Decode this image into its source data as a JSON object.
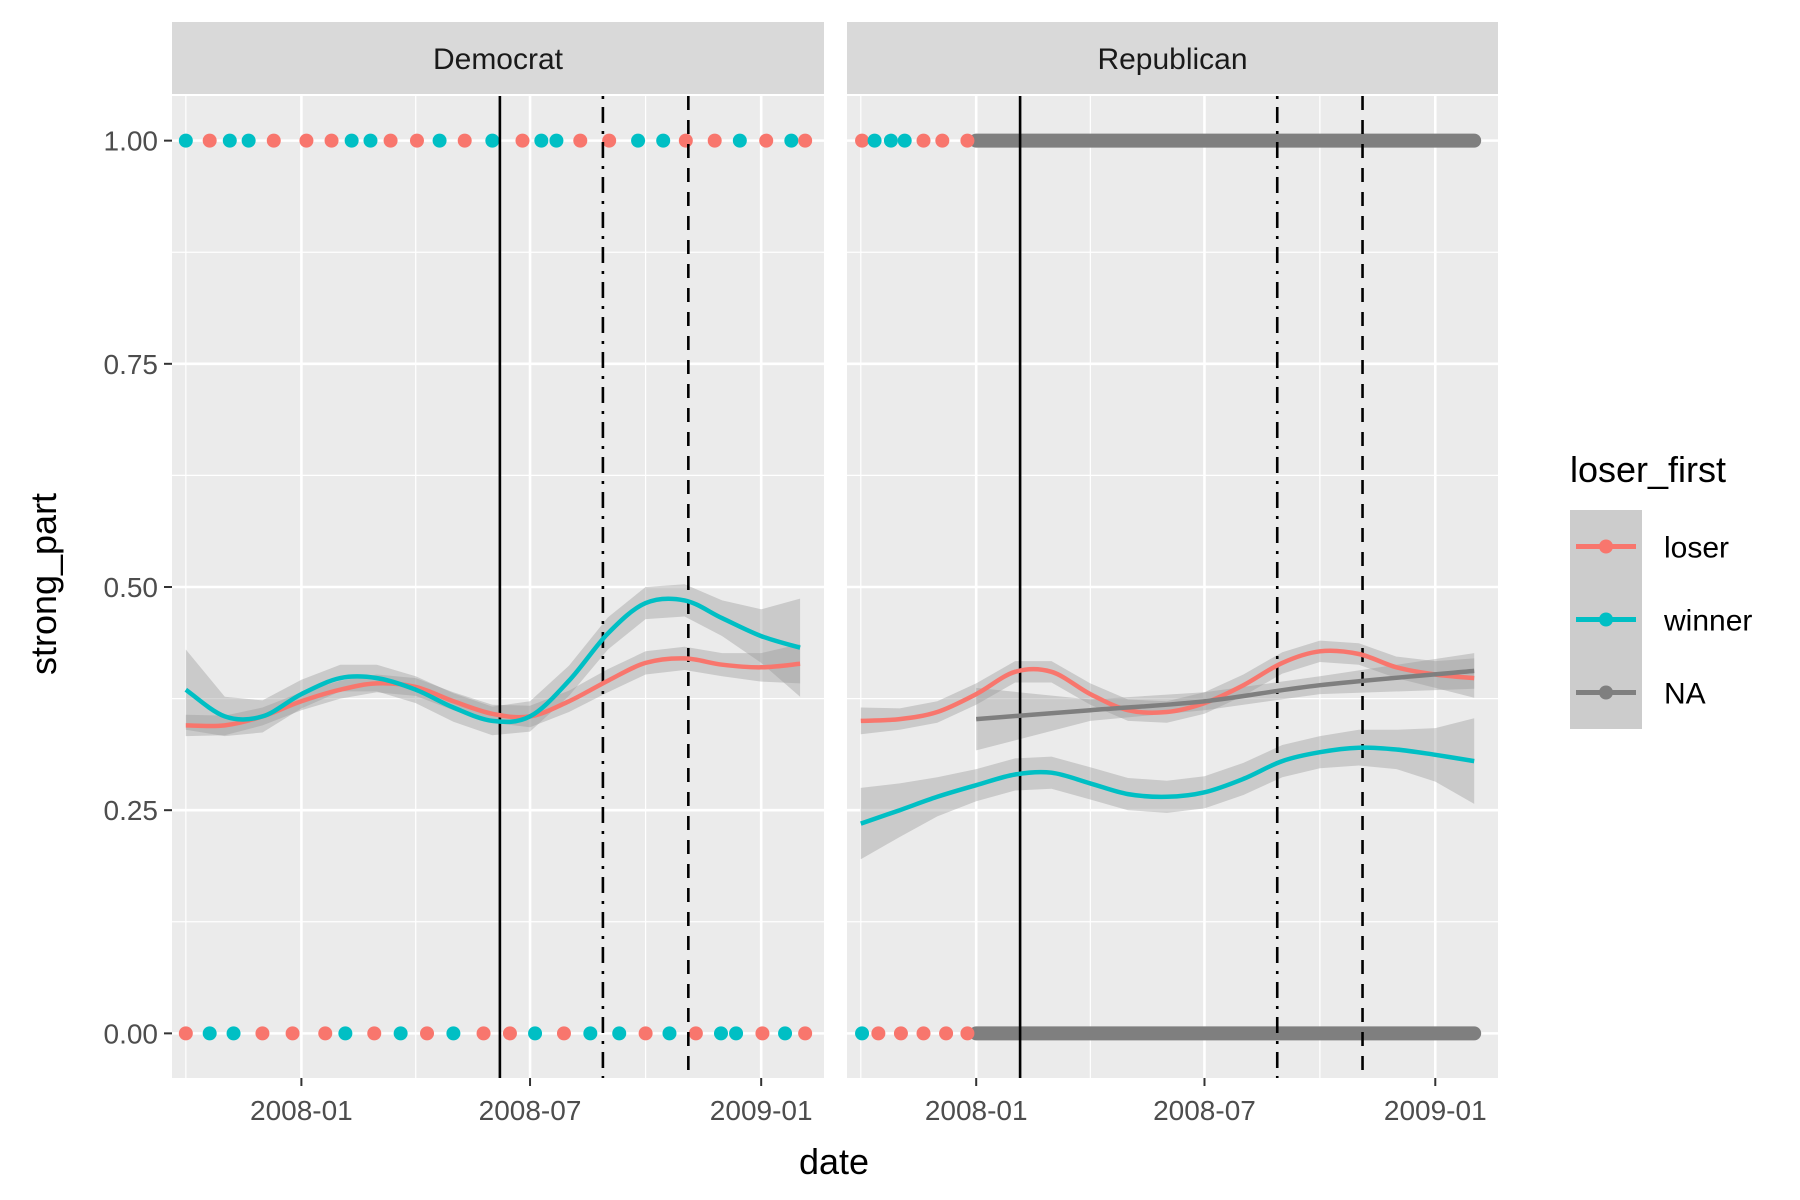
{
  "chart_data": {
    "type": "line",
    "subtype": "faceted scatter with loess smooth and confidence bands",
    "xlabel": "date",
    "ylabel": "strong_part",
    "x_ticks": [
      "2008-01",
      "2008-07",
      "2009-01"
    ],
    "y_ticks": [
      "0.00",
      "0.25",
      "0.50",
      "0.75",
      "1.00"
    ],
    "xlim": [
      "2007-09-20",
      "2009-02-20"
    ],
    "ylim": [
      -0.05,
      1.05
    ],
    "grid": true,
    "legend": {
      "title": "loser_first",
      "position": "right",
      "entries": [
        {
          "label": "loser",
          "color": "#F8766D"
        },
        {
          "label": "winner",
          "color": "#00BFC4"
        },
        {
          "label": "NA",
          "color": "#7F7F7F"
        }
      ]
    },
    "facets": [
      {
        "label": "Democrat",
        "vlines": [
          {
            "x": "2008-06-07",
            "style": "solid"
          },
          {
            "x": "2008-08-28",
            "style": "dotdash"
          },
          {
            "x": "2008-11-04",
            "style": "dashed"
          }
        ],
        "series": [
          {
            "name": "loser",
            "color": "#F8766D",
            "x": [
              "2007-10-01",
              "2007-11-01",
              "2007-12-01",
              "2008-01-01",
              "2008-02-01",
              "2008-03-01",
              "2008-04-01",
              "2008-05-01",
              "2008-06-01",
              "2008-07-01",
              "2008-08-01",
              "2008-09-01",
              "2008-10-01",
              "2008-11-01",
              "2008-12-01",
              "2009-01-01",
              "2009-02-01"
            ],
            "y": [
              0.345,
              0.345,
              0.355,
              0.372,
              0.385,
              0.392,
              0.388,
              0.372,
              0.358,
              0.355,
              0.372,
              0.395,
              0.415,
              0.42,
              0.413,
              0.41,
              0.414
            ],
            "band": [
              0.012,
              0.011,
              0.01,
              0.01,
              0.01,
              0.01,
              0.01,
              0.01,
              0.01,
              0.012,
              0.012,
              0.013,
              0.013,
              0.013,
              0.013,
              0.016,
              0.022
            ]
          },
          {
            "name": "winner",
            "color": "#00BFC4",
            "x": [
              "2007-10-01",
              "2007-11-01",
              "2007-12-01",
              "2008-01-01",
              "2008-02-01",
              "2008-03-01",
              "2008-04-01",
              "2008-05-01",
              "2008-06-01",
              "2008-07-01",
              "2008-08-01",
              "2008-09-01",
              "2008-10-01",
              "2008-11-01",
              "2008-12-01",
              "2009-01-01",
              "2009-02-01"
            ],
            "y": [
              0.385,
              0.355,
              0.355,
              0.38,
              0.398,
              0.398,
              0.385,
              0.365,
              0.35,
              0.355,
              0.395,
              0.448,
              0.482,
              0.485,
              0.465,
              0.445,
              0.432
            ],
            "band": [
              0.045,
              0.022,
              0.018,
              0.016,
              0.015,
              0.015,
              0.015,
              0.016,
              0.016,
              0.017,
              0.017,
              0.018,
              0.018,
              0.018,
              0.02,
              0.03,
              0.055
            ]
          }
        ],
        "points": {
          "y1": [
            {
              "x": "2007-10-01",
              "group": "winner"
            },
            {
              "x": "2007-10-20",
              "group": "loser"
            },
            {
              "x": "2007-11-05",
              "group": "winner"
            },
            {
              "x": "2007-11-20",
              "group": "winner"
            },
            {
              "x": "2007-12-10",
              "group": "loser"
            },
            {
              "x": "2008-01-05",
              "group": "loser"
            },
            {
              "x": "2008-01-25",
              "group": "loser"
            },
            {
              "x": "2008-02-10",
              "group": "winner"
            },
            {
              "x": "2008-02-25",
              "group": "winner"
            },
            {
              "x": "2008-03-12",
              "group": "loser"
            },
            {
              "x": "2008-04-02",
              "group": "loser"
            },
            {
              "x": "2008-04-20",
              "group": "winner"
            },
            {
              "x": "2008-05-10",
              "group": "loser"
            },
            {
              "x": "2008-06-01",
              "group": "winner"
            },
            {
              "x": "2008-06-25",
              "group": "loser"
            },
            {
              "x": "2008-07-10",
              "group": "winner"
            },
            {
              "x": "2008-07-22",
              "group": "winner"
            },
            {
              "x": "2008-08-10",
              "group": "loser"
            },
            {
              "x": "2008-09-02",
              "group": "loser"
            },
            {
              "x": "2008-09-25",
              "group": "winner"
            },
            {
              "x": "2008-10-15",
              "group": "winner"
            },
            {
              "x": "2008-11-02",
              "group": "loser"
            },
            {
              "x": "2008-11-25",
              "group": "loser"
            },
            {
              "x": "2008-12-15",
              "group": "winner"
            },
            {
              "x": "2009-01-05",
              "group": "loser"
            },
            {
              "x": "2009-01-25",
              "group": "winner"
            },
            {
              "x": "2009-02-05",
              "group": "loser"
            }
          ],
          "y0": [
            {
              "x": "2007-10-01",
              "group": "loser"
            },
            {
              "x": "2007-10-20",
              "group": "winner"
            },
            {
              "x": "2007-11-08",
              "group": "winner"
            },
            {
              "x": "2007-12-01",
              "group": "loser"
            },
            {
              "x": "2007-12-25",
              "group": "loser"
            },
            {
              "x": "2008-01-20",
              "group": "loser"
            },
            {
              "x": "2008-02-05",
              "group": "winner"
            },
            {
              "x": "2008-02-28",
              "group": "loser"
            },
            {
              "x": "2008-03-20",
              "group": "winner"
            },
            {
              "x": "2008-04-10",
              "group": "loser"
            },
            {
              "x": "2008-05-01",
              "group": "winner"
            },
            {
              "x": "2008-05-25",
              "group": "loser"
            },
            {
              "x": "2008-06-15",
              "group": "loser"
            },
            {
              "x": "2008-07-05",
              "group": "winner"
            },
            {
              "x": "2008-07-28",
              "group": "loser"
            },
            {
              "x": "2008-08-18",
              "group": "winner"
            },
            {
              "x": "2008-09-10",
              "group": "winner"
            },
            {
              "x": "2008-10-01",
              "group": "loser"
            },
            {
              "x": "2008-10-20",
              "group": "winner"
            },
            {
              "x": "2008-11-10",
              "group": "loser"
            },
            {
              "x": "2008-11-30",
              "group": "winner"
            },
            {
              "x": "2008-12-12",
              "group": "winner"
            },
            {
              "x": "2009-01-02",
              "group": "loser"
            },
            {
              "x": "2009-01-20",
              "group": "winner"
            },
            {
              "x": "2009-02-05",
              "group": "loser"
            }
          ]
        }
      },
      {
        "label": "Republican",
        "vlines": [
          {
            "x": "2008-02-05",
            "style": "solid"
          },
          {
            "x": "2008-08-28",
            "style": "dotdash"
          },
          {
            "x": "2008-11-04",
            "style": "dashed"
          }
        ],
        "series": [
          {
            "name": "loser",
            "color": "#F8766D",
            "x": [
              "2007-10-01",
              "2007-11-01",
              "2007-12-01",
              "2008-01-01",
              "2008-02-01",
              "2008-03-01",
              "2008-04-01",
              "2008-05-01",
              "2008-06-01",
              "2008-07-01",
              "2008-08-01",
              "2008-09-01",
              "2008-10-01",
              "2008-11-01",
              "2008-12-01",
              "2009-01-01",
              "2009-02-01"
            ],
            "y": [
              0.35,
              0.352,
              0.36,
              0.38,
              0.405,
              0.405,
              0.38,
              0.362,
              0.36,
              0.37,
              0.39,
              0.415,
              0.428,
              0.425,
              0.41,
              0.402,
              0.398
            ],
            "band": [
              0.015,
              0.012,
              0.012,
              0.012,
              0.012,
              0.012,
              0.012,
              0.012,
              0.012,
              0.012,
              0.012,
              0.012,
              0.012,
              0.012,
              0.012,
              0.015,
              0.022
            ]
          },
          {
            "name": "winner",
            "color": "#00BFC4",
            "x": [
              "2007-10-01",
              "2007-11-01",
              "2007-12-01",
              "2008-01-01",
              "2008-02-01",
              "2008-03-01",
              "2008-04-01",
              "2008-05-01",
              "2008-06-01",
              "2008-07-01",
              "2008-08-01",
              "2008-09-01",
              "2008-10-01",
              "2008-11-01",
              "2008-12-01",
              "2009-01-01",
              "2009-02-01"
            ],
            "y": [
              0.235,
              0.25,
              0.265,
              0.278,
              0.29,
              0.292,
              0.28,
              0.268,
              0.265,
              0.27,
              0.285,
              0.305,
              0.315,
              0.32,
              0.318,
              0.312,
              0.305
            ],
            "band": [
              0.04,
              0.03,
              0.022,
              0.018,
              0.018,
              0.018,
              0.018,
              0.018,
              0.018,
              0.018,
              0.018,
              0.018,
              0.018,
              0.02,
              0.022,
              0.03,
              0.048
            ]
          },
          {
            "name": "NA",
            "color": "#7F7F7F",
            "x": [
              "2008-01-01",
              "2008-04-01",
              "2008-07-01",
              "2008-10-01",
              "2009-02-01"
            ],
            "y": [
              0.352,
              0.362,
              0.372,
              0.39,
              0.406
            ],
            "band": [
              0.035,
              0.012,
              0.01,
              0.01,
              0.02
            ]
          }
        ],
        "points": {
          "y1": [
            {
              "x": "2007-10-02",
              "group": "loser"
            },
            {
              "x": "2007-10-12",
              "group": "winner"
            },
            {
              "x": "2007-10-25",
              "group": "winner"
            },
            {
              "x": "2007-11-05",
              "group": "winner"
            },
            {
              "x": "2007-11-20",
              "group": "loser"
            },
            {
              "x": "2007-12-05",
              "group": "loser"
            },
            {
              "x": "2007-12-25",
              "group": "loser"
            }
          ],
          "y0": [
            {
              "x": "2007-10-02",
              "group": "winner"
            },
            {
              "x": "2007-10-15",
              "group": "loser"
            },
            {
              "x": "2007-11-02",
              "group": "loser"
            },
            {
              "x": "2007-11-20",
              "group": "loser"
            },
            {
              "x": "2007-12-08",
              "group": "loser"
            },
            {
              "x": "2007-12-25",
              "group": "loser"
            }
          ],
          "na_range": [
            "2008-01-01",
            "2009-02-01"
          ]
        }
      }
    ]
  }
}
